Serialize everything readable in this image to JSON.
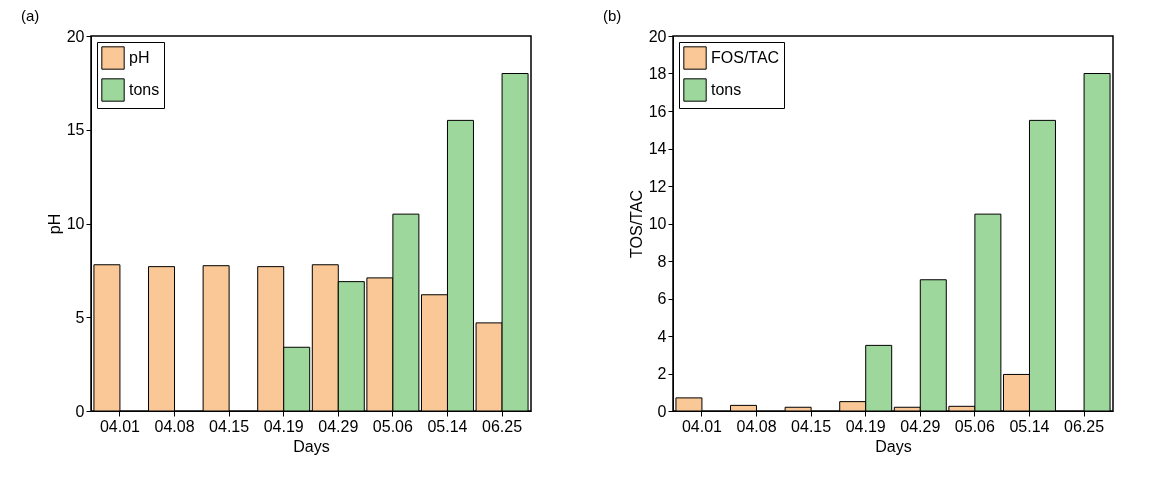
{
  "chart_data": [
    {
      "type": "bar",
      "title": "(a)",
      "xlabel": "Days",
      "ylabel": "pH",
      "categories": [
        "04.01",
        "04.08",
        "04.15",
        "04.19",
        "04.29",
        "05.06",
        "05.14",
        "06.25"
      ],
      "series": [
        {
          "name": "pH",
          "color": "#f9c896",
          "values": [
            7.8,
            7.7,
            7.75,
            7.7,
            7.8,
            7.1,
            6.2,
            4.7
          ]
        },
        {
          "name": "tons",
          "color": "#9dd79c",
          "values": [
            null,
            null,
            null,
            3.4,
            6.9,
            10.5,
            15.5,
            18.0
          ]
        }
      ],
      "ylim": [
        0,
        20
      ],
      "yticks": [
        0,
        5,
        10,
        15,
        20
      ],
      "legend": "top left"
    },
    {
      "type": "bar",
      "title": "(b)",
      "xlabel": "Days",
      "ylabel": "TOS/TAC",
      "categories": [
        "04.01",
        "04.08",
        "04.15",
        "04.19",
        "04.29",
        "05.06",
        "05.14",
        "06.25"
      ],
      "series": [
        {
          "name": "FOS/TAC",
          "color": "#f9c896",
          "values": [
            0.7,
            0.3,
            0.2,
            0.5,
            0.2,
            0.25,
            1.95,
            null
          ]
        },
        {
          "name": "tons",
          "color": "#9dd79c",
          "values": [
            null,
            null,
            null,
            3.5,
            7.0,
            10.5,
            15.5,
            18.0
          ]
        }
      ],
      "ylim": [
        0,
        20
      ],
      "yticks": [
        0,
        2,
        4,
        6,
        8,
        10,
        12,
        14,
        16,
        18,
        20
      ],
      "legend": "top left"
    }
  ]
}
